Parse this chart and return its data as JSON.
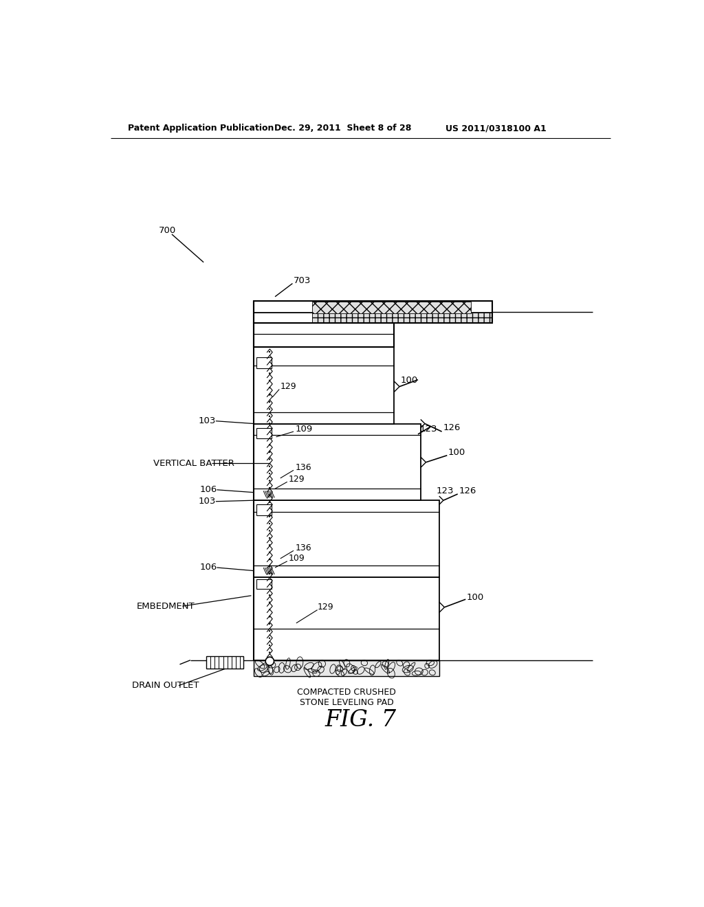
{
  "bg_color": "#ffffff",
  "header_text": "Patent Application Publication",
  "header_date": "Dec. 29, 2011  Sheet 8 of 28",
  "header_patent": "US 2011/0318100 A1",
  "fig_label": "FIG. 7",
  "label_700": "700",
  "label_703": "703",
  "label_100_top": "100",
  "label_129_top": "129",
  "label_103_upper": "103",
  "label_123_upper": "123",
  "label_126_upper": "126",
  "label_109_upper": "109",
  "label_vb": "VERTICAL BATTER",
  "label_106_mid1": "106",
  "label_136_mid1": "136",
  "label_129_mid1": "129",
  "label_100_mid": "100",
  "label_103_lower": "103",
  "label_123_lower": "123",
  "label_126_lower": "126",
  "label_106_mid2": "106",
  "label_136_mid2": "136",
  "label_109_lower": "109",
  "label_100_bottom": "100",
  "label_embedment": "EMBEDMENT",
  "label_129_bottom": "129",
  "label_drain": "DRAIN OUTLET",
  "label_stone": "COMPACTED CRUSHED\nSTONE LEVELING PAD"
}
